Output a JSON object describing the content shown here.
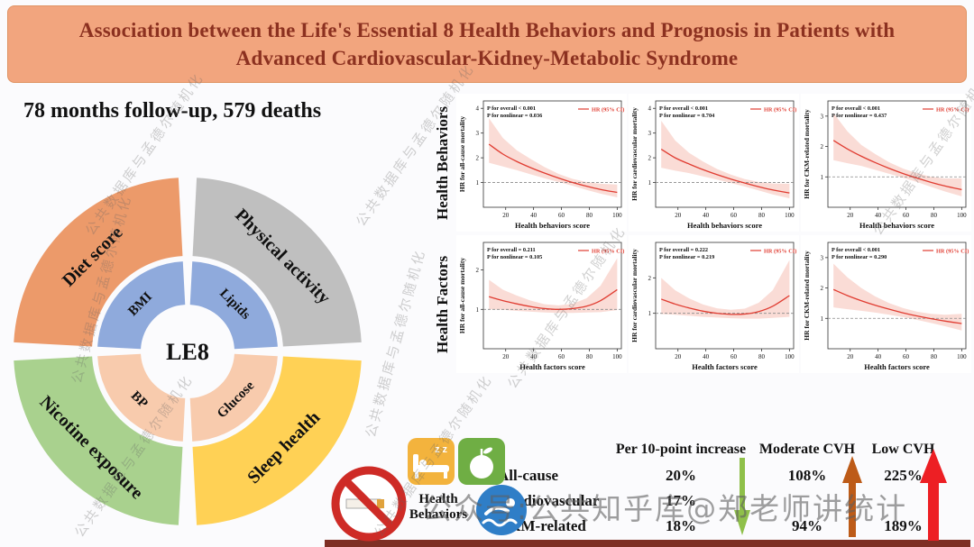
{
  "banner": {
    "title_line1": "Association between the Life's Essential 8 Health Behaviors and Prognosis in Patients with",
    "title_line2": "Advanced Cardiovascular-Kidney-Metabolic Syndrome"
  },
  "subtitle": "78 months follow-up, 579 deaths",
  "donut": {
    "center_label": "LE8",
    "outer_segments": [
      {
        "label": "Diet score",
        "color": "#EC9A6A",
        "quadrant": "top-left"
      },
      {
        "label": "Physical activity",
        "color": "#BFBFBF",
        "quadrant": "top-right"
      },
      {
        "label": "Sleep health",
        "color": "#FFD155",
        "quadrant": "bottom-right"
      },
      {
        "label": "Nicotine exposure",
        "color": "#A9D18E",
        "quadrant": "bottom-left"
      }
    ],
    "inner_segments": [
      {
        "label": "BMI",
        "color": "#8FAADC",
        "quadrant": "top-left"
      },
      {
        "label": "Lipids",
        "color": "#8FAADC",
        "quadrant": "top-right"
      },
      {
        "label": "Glucose",
        "color": "#F8CBAD",
        "quadrant": "bottom-right"
      },
      {
        "label": "BP",
        "color": "#F8CBAD",
        "quadrant": "bottom-left"
      }
    ]
  },
  "row_labels": [
    "Health Behaviors",
    "Health Factors"
  ],
  "chart_data": [
    {
      "type": "line",
      "group": "Health Behaviors",
      "ylabel": "HR for all-cause mortality",
      "xlabel": "Health behaviors score",
      "p_overall": "P for overall < 0.001",
      "p_nonlinear": "P for nonlinear = 0.036",
      "legend": "HR (95% CI)",
      "xlim": [
        4,
        103
      ],
      "xticks": [
        20,
        40,
        60,
        80,
        100
      ],
      "ylim": [
        0,
        4.3
      ],
      "yticks": [
        1,
        2,
        3,
        4
      ],
      "ref": 1,
      "x": [
        8,
        18,
        28,
        38,
        48,
        58,
        68,
        78,
        88,
        100
      ],
      "hr": [
        2.55,
        2.15,
        1.85,
        1.6,
        1.38,
        1.18,
        1.0,
        0.85,
        0.72,
        0.6
      ],
      "upper": [
        3.6,
        2.8,
        2.3,
        1.95,
        1.62,
        1.35,
        1.15,
        1.02,
        0.95,
        0.92
      ],
      "lower": [
        1.8,
        1.65,
        1.5,
        1.33,
        1.17,
        1.02,
        0.87,
        0.7,
        0.55,
        0.4
      ]
    },
    {
      "type": "line",
      "group": "Health Behaviors",
      "ylabel": "HR for cardiovascular mortality",
      "xlabel": "Health behaviors score",
      "p_overall": "P for overall < 0.001",
      "p_nonlinear": "P for nonlinear = 0.704",
      "legend": "HR (95% CI)",
      "xlim": [
        4,
        103
      ],
      "xticks": [
        20,
        40,
        60,
        80,
        100
      ],
      "ylim": [
        0,
        4.3
      ],
      "yticks": [
        1,
        2,
        3,
        4
      ],
      "ref": 1,
      "x": [
        8,
        18,
        28,
        38,
        48,
        58,
        68,
        78,
        88,
        100
      ],
      "hr": [
        2.35,
        2.0,
        1.75,
        1.52,
        1.32,
        1.14,
        0.98,
        0.83,
        0.7,
        0.58
      ],
      "upper": [
        3.5,
        2.7,
        2.2,
        1.85,
        1.55,
        1.32,
        1.14,
        1.02,
        0.96,
        0.95
      ],
      "lower": [
        1.6,
        1.48,
        1.38,
        1.25,
        1.12,
        0.98,
        0.84,
        0.68,
        0.52,
        0.36
      ]
    },
    {
      "type": "line",
      "group": "Health Behaviors",
      "ylabel": "HR for CKM-related mortality",
      "xlabel": "Health behaviors score",
      "p_overall": "P for overall < 0.001",
      "p_nonlinear": "P for nonlinear = 0.437",
      "legend": "HR (95% CI)",
      "xlim": [
        4,
        103
      ],
      "xticks": [
        20,
        40,
        60,
        80,
        100
      ],
      "ylim": [
        0,
        3.5
      ],
      "yticks": [
        1,
        2,
        3
      ],
      "ref": 1,
      "x": [
        8,
        18,
        28,
        38,
        48,
        58,
        68,
        78,
        88,
        100
      ],
      "hr": [
        2.2,
        1.92,
        1.68,
        1.47,
        1.28,
        1.11,
        0.96,
        0.82,
        0.7,
        0.58
      ],
      "upper": [
        3.1,
        2.5,
        2.05,
        1.75,
        1.48,
        1.27,
        1.12,
        1.0,
        0.95,
        0.95
      ],
      "lower": [
        1.55,
        1.45,
        1.36,
        1.23,
        1.1,
        0.97,
        0.83,
        0.67,
        0.52,
        0.36
      ]
    },
    {
      "type": "line",
      "group": "Health Factors",
      "ylabel": "HR for all-cause mortality",
      "xlabel": "Health factors score",
      "p_overall": "P for overall = 0.211",
      "p_nonlinear": "P for nonlinear = 0.105",
      "legend": "HR (95% CI)",
      "xlim": [
        4,
        103
      ],
      "xticks": [
        20,
        40,
        60,
        80,
        100
      ],
      "ylim": [
        0,
        2.7
      ],
      "yticks": [
        1,
        2
      ],
      "ref": 1,
      "x": [
        8,
        18,
        28,
        38,
        48,
        58,
        68,
        78,
        88,
        100
      ],
      "hr": [
        1.32,
        1.22,
        1.14,
        1.07,
        1.02,
        1.0,
        1.02,
        1.08,
        1.22,
        1.5
      ],
      "upper": [
        1.75,
        1.5,
        1.35,
        1.22,
        1.13,
        1.1,
        1.14,
        1.28,
        1.6,
        2.3
      ],
      "lower": [
        1.0,
        0.99,
        0.96,
        0.94,
        0.92,
        0.91,
        0.91,
        0.92,
        0.93,
        0.98
      ]
    },
    {
      "type": "line",
      "group": "Health Factors",
      "ylabel": "HR for cardiovascular mortality",
      "xlabel": "Health factors score",
      "p_overall": "P for overall = 0.222",
      "p_nonlinear": "P for nonlinear = 0.219",
      "legend": "HR (95% CI)",
      "xlim": [
        4,
        103
      ],
      "xticks": [
        20,
        40,
        60,
        80,
        100
      ],
      "ylim": [
        0,
        3.0
      ],
      "yticks": [
        1,
        2
      ],
      "ref": 1,
      "x": [
        8,
        18,
        28,
        38,
        48,
        58,
        68,
        78,
        88,
        100
      ],
      "hr": [
        1.4,
        1.26,
        1.15,
        1.06,
        1.0,
        0.97,
        0.98,
        1.05,
        1.2,
        1.5
      ],
      "upper": [
        2.0,
        1.65,
        1.42,
        1.25,
        1.14,
        1.1,
        1.13,
        1.3,
        1.65,
        2.5
      ],
      "lower": [
        0.98,
        0.96,
        0.93,
        0.9,
        0.88,
        0.86,
        0.85,
        0.85,
        0.87,
        0.9
      ]
    },
    {
      "type": "line",
      "group": "Health Factors",
      "ylabel": "HR for CKM-related mortality",
      "xlabel": "Health factors score",
      "p_overall": "P for overall < 0.001",
      "p_nonlinear": "P for nonlinear = 0.290",
      "legend": "HR (95% CI)",
      "xlim": [
        4,
        103
      ],
      "xticks": [
        20,
        40,
        60,
        80,
        100
      ],
      "ylim": [
        0,
        3.5
      ],
      "yticks": [
        1,
        2,
        3
      ],
      "ref": 1,
      "x": [
        8,
        18,
        28,
        38,
        48,
        58,
        68,
        78,
        88,
        100
      ],
      "hr": [
        1.95,
        1.75,
        1.58,
        1.43,
        1.3,
        1.18,
        1.08,
        0.99,
        0.91,
        0.83
      ],
      "upper": [
        2.8,
        2.35,
        2.0,
        1.72,
        1.5,
        1.34,
        1.22,
        1.15,
        1.12,
        1.15
      ],
      "lower": [
        1.36,
        1.3,
        1.25,
        1.19,
        1.12,
        1.04,
        0.95,
        0.85,
        0.74,
        0.6
      ]
    }
  ],
  "summary": {
    "icon_label": "Health Behaviors",
    "columns": [
      "Per 10-point increase",
      "Moderate CVH",
      "Low CVH"
    ],
    "rows": [
      {
        "label": "All-cause",
        "values": [
          "20%",
          "108%",
          "225%"
        ]
      },
      {
        "label": "Cardiovascular",
        "values": [
          "17%",
          "",
          ""
        ]
      },
      {
        "label": "CKM-related",
        "values": [
          "18%",
          "94%",
          "189%"
        ]
      }
    ],
    "arrow_colors": {
      "decrease": "#8FC04A",
      "moderate": "#BD5B18",
      "low": "#ED1F24"
    }
  },
  "watermarks": {
    "diagonal": "公共数据库与孟德尔随机化",
    "banner": "公众号:公共知乎库@郑老师讲统计"
  },
  "colors": {
    "banner_bg": "#F2A57E",
    "banner_text": "#8C3120",
    "curve": "#E03C31",
    "band": "#F5BFB5",
    "bottom_bar": "#7E2F24"
  }
}
